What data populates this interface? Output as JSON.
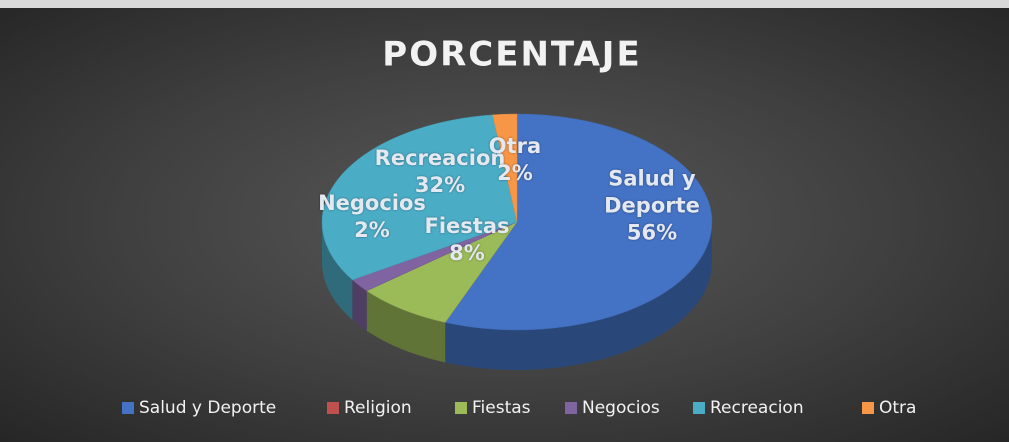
{
  "chart_data": {
    "type": "pie3d",
    "title": "PORCENTAJE",
    "categories": [
      "Salud y Deporte",
      "Religion",
      "Fiestas",
      "Negocios",
      "Recreacion",
      "Otra"
    ],
    "values": [
      56,
      0,
      8,
      2,
      32,
      2
    ],
    "value_labels": [
      "56%",
      null,
      "8%",
      "2%",
      "32%",
      "2%"
    ],
    "colors": [
      "#4472c4",
      "#c0504d",
      "#9bbb59",
      "#8064a2",
      "#4bacc6",
      "#f79646"
    ],
    "legend": "bottom"
  }
}
